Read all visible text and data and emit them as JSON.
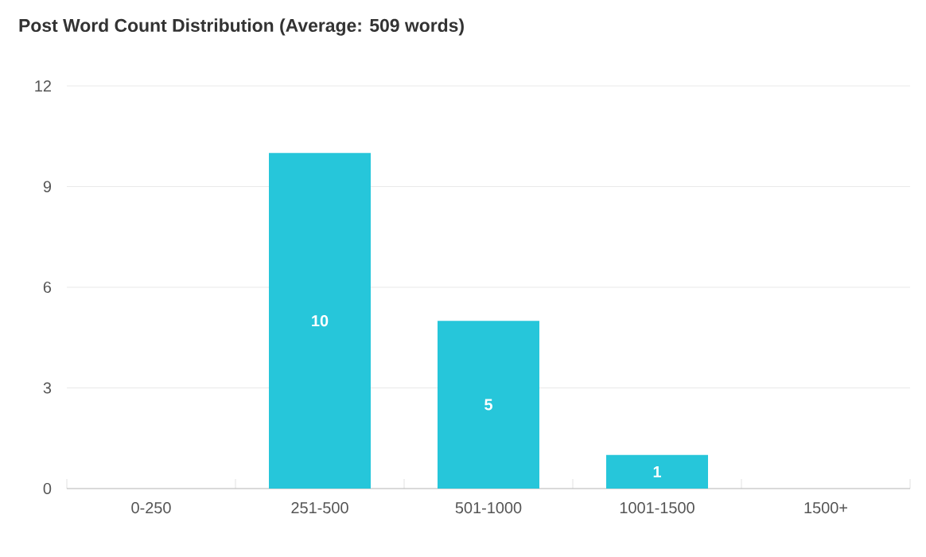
{
  "chart_data": {
    "type": "bar",
    "title": "Post Word Count Distribution (Average: 509 words)",
    "categories": [
      "0-250",
      "251-500",
      "501-1000",
      "1001-1500",
      "1500+"
    ],
    "values": [
      0,
      10,
      5,
      1,
      0
    ],
    "value_labels": [
      null,
      "10",
      "5",
      "1",
      null
    ],
    "color": "#26c6da",
    "ylim": [
      0,
      12
    ],
    "yticks": [
      0,
      3,
      6,
      9,
      12
    ],
    "grid": "y"
  }
}
